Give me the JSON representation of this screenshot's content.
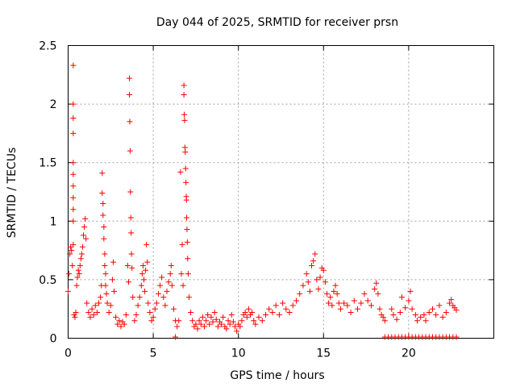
{
  "colors": {
    "series": "#ff0000",
    "grid": "#a0a0a0",
    "axis": "#000000",
    "background": "#ffffff"
  },
  "chart_data": {
    "type": "scatter",
    "title": "Day 044 of 2025, SRMTID for receiver prsn",
    "xlabel": "GPS time / hours",
    "ylabel": "SRMTID / TECUs",
    "xlim": [
      0,
      25
    ],
    "ylim": [
      0,
      2.5
    ],
    "xticks": [
      0,
      5,
      10,
      15,
      20
    ],
    "yticks": [
      0,
      0.5,
      1,
      1.5,
      2,
      2.5
    ],
    "xtick_labels": [
      "0",
      "5",
      "10",
      "15",
      "20"
    ],
    "ytick_labels": [
      "0",
      "0.5",
      "1",
      "1.5",
      "2",
      "2.5"
    ],
    "grid": true,
    "marker": "plus",
    "series": [
      {
        "name": "SRMTID",
        "points": [
          [
            0.0,
            0.4
          ],
          [
            0.05,
            0.55
          ],
          [
            0.1,
            0.72
          ],
          [
            0.15,
            0.78
          ],
          [
            0.2,
            0.75
          ],
          [
            0.25,
            0.62
          ],
          [
            0.3,
            2.33
          ],
          [
            0.3,
            2.0
          ],
          [
            0.3,
            1.88
          ],
          [
            0.3,
            1.75
          ],
          [
            0.3,
            1.5
          ],
          [
            0.3,
            1.4
          ],
          [
            0.3,
            1.3
          ],
          [
            0.3,
            1.2
          ],
          [
            0.3,
            1.1
          ],
          [
            0.3,
            1.0
          ],
          [
            0.3,
            0.8
          ],
          [
            0.35,
            0.2
          ],
          [
            0.4,
            0.18
          ],
          [
            0.45,
            0.22
          ],
          [
            0.5,
            0.45
          ],
          [
            0.55,
            0.52
          ],
          [
            0.6,
            0.58
          ],
          [
            0.65,
            0.55
          ],
          [
            0.7,
            0.62
          ],
          [
            0.75,
            0.68
          ],
          [
            0.8,
            0.72
          ],
          [
            0.85,
            0.78
          ],
          [
            0.9,
            0.88
          ],
          [
            0.95,
            0.95
          ],
          [
            1.0,
            1.02
          ],
          [
            1.05,
            0.85
          ],
          [
            1.1,
            0.3
          ],
          [
            1.2,
            0.22
          ],
          [
            1.3,
            0.18
          ],
          [
            1.4,
            0.25
          ],
          [
            1.5,
            0.2
          ],
          [
            1.6,
            0.28
          ],
          [
            1.7,
            0.22
          ],
          [
            1.8,
            0.3
          ],
          [
            1.9,
            0.35
          ],
          [
            1.95,
            0.45
          ],
          [
            2.0,
            1.41
          ],
          [
            2.0,
            1.24
          ],
          [
            2.05,
            1.15
          ],
          [
            2.05,
            1.05
          ],
          [
            2.1,
            0.95
          ],
          [
            2.1,
            0.85
          ],
          [
            2.15,
            0.72
          ],
          [
            2.15,
            0.62
          ],
          [
            2.2,
            0.55
          ],
          [
            2.2,
            0.45
          ],
          [
            2.25,
            0.38
          ],
          [
            2.3,
            0.3
          ],
          [
            2.4,
            0.22
          ],
          [
            2.5,
            0.28
          ],
          [
            2.6,
            0.5
          ],
          [
            2.65,
            0.65
          ],
          [
            2.7,
            0.4
          ],
          [
            2.8,
            0.18
          ],
          [
            2.9,
            0.12
          ],
          [
            3.0,
            0.15
          ],
          [
            3.1,
            0.1
          ],
          [
            3.2,
            0.14
          ],
          [
            3.3,
            0.12
          ],
          [
            3.4,
            0.2
          ],
          [
            3.5,
            0.62
          ],
          [
            3.55,
            0.48
          ],
          [
            3.6,
            2.22
          ],
          [
            3.6,
            2.08
          ],
          [
            3.62,
            1.85
          ],
          [
            3.64,
            1.6
          ],
          [
            3.66,
            1.25
          ],
          [
            3.68,
            1.03
          ],
          [
            3.7,
            0.9
          ],
          [
            3.72,
            0.72
          ],
          [
            3.75,
            0.6
          ],
          [
            3.8,
            0.35
          ],
          [
            3.9,
            0.15
          ],
          [
            4.0,
            0.2
          ],
          [
            4.1,
            0.28
          ],
          [
            4.2,
            0.35
          ],
          [
            4.3,
            0.45
          ],
          [
            4.35,
            0.55
          ],
          [
            4.4,
            0.62
          ],
          [
            4.45,
            0.5
          ],
          [
            4.5,
            0.4
          ],
          [
            4.55,
            0.58
          ],
          [
            4.6,
            0.8
          ],
          [
            4.65,
            0.65
          ],
          [
            4.7,
            0.3
          ],
          [
            4.8,
            0.22
          ],
          [
            4.9,
            0.15
          ],
          [
            5.0,
            0.18
          ],
          [
            5.1,
            0.25
          ],
          [
            5.2,
            0.3
          ],
          [
            5.3,
            0.38
          ],
          [
            5.4,
            0.45
          ],
          [
            5.5,
            0.52
          ],
          [
            5.6,
            0.35
          ],
          [
            5.7,
            0.28
          ],
          [
            5.8,
            0.4
          ],
          [
            5.9,
            0.48
          ],
          [
            6.0,
            0.55
          ],
          [
            6.05,
            0.62
          ],
          [
            6.1,
            0.45
          ],
          [
            6.2,
            0.25
          ],
          [
            6.3,
            0.15
          ],
          [
            6.3,
            0.01
          ],
          [
            6.4,
            0.1
          ],
          [
            6.5,
            0.15
          ],
          [
            6.6,
            1.42
          ],
          [
            6.65,
            0.55
          ],
          [
            6.7,
            0.8
          ],
          [
            6.75,
            0.45
          ],
          [
            6.8,
            2.16
          ],
          [
            6.8,
            2.08
          ],
          [
            6.82,
            1.91
          ],
          [
            6.84,
            1.86
          ],
          [
            6.86,
            1.63
          ],
          [
            6.88,
            1.59
          ],
          [
            6.9,
            1.45
          ],
          [
            6.92,
            1.33
          ],
          [
            6.94,
            1.21
          ],
          [
            6.95,
            1.18
          ],
          [
            6.96,
            1.03
          ],
          [
            6.98,
            0.93
          ],
          [
            7.0,
            0.82
          ],
          [
            7.02,
            0.68
          ],
          [
            7.05,
            0.55
          ],
          [
            7.1,
            0.35
          ],
          [
            7.2,
            0.22
          ],
          [
            7.3,
            0.15
          ],
          [
            7.4,
            0.1
          ],
          [
            7.5,
            0.12
          ],
          [
            7.6,
            0.08
          ],
          [
            7.7,
            0.15
          ],
          [
            7.8,
            0.12
          ],
          [
            7.9,
            0.18
          ],
          [
            8.0,
            0.1
          ],
          [
            8.1,
            0.15
          ],
          [
            8.2,
            0.2
          ],
          [
            8.3,
            0.12
          ],
          [
            8.4,
            0.18
          ],
          [
            8.5,
            0.14
          ],
          [
            8.6,
            0.22
          ],
          [
            8.7,
            0.16
          ],
          [
            8.8,
            0.1
          ],
          [
            8.9,
            0.14
          ],
          [
            9.0,
            0.12
          ],
          [
            9.1,
            0.18
          ],
          [
            9.2,
            0.1
          ],
          [
            9.3,
            0.08
          ],
          [
            9.4,
            0.15
          ],
          [
            9.5,
            0.12
          ],
          [
            9.6,
            0.2
          ],
          [
            9.7,
            0.14
          ],
          [
            9.8,
            0.1
          ],
          [
            9.9,
            0.06
          ],
          [
            10.0,
            0.12
          ],
          [
            10.1,
            0.1
          ],
          [
            10.2,
            0.15
          ],
          [
            10.3,
            0.2
          ],
          [
            10.4,
            0.22
          ],
          [
            10.5,
            0.18
          ],
          [
            10.6,
            0.25
          ],
          [
            10.7,
            0.2
          ],
          [
            10.8,
            0.22
          ],
          [
            10.9,
            0.15
          ],
          [
            11.0,
            0.12
          ],
          [
            11.2,
            0.18
          ],
          [
            11.4,
            0.15
          ],
          [
            11.6,
            0.2
          ],
          [
            11.8,
            0.25
          ],
          [
            12.0,
            0.22
          ],
          [
            12.2,
            0.28
          ],
          [
            12.4,
            0.2
          ],
          [
            12.6,
            0.3
          ],
          [
            12.8,
            0.25
          ],
          [
            13.0,
            0.22
          ],
          [
            13.2,
            0.28
          ],
          [
            13.4,
            0.32
          ],
          [
            13.6,
            0.38
          ],
          [
            13.8,
            0.45
          ],
          [
            14.0,
            0.55
          ],
          [
            14.1,
            0.48
          ],
          [
            14.2,
            0.4
          ],
          [
            14.3,
            0.62
          ],
          [
            14.4,
            0.66
          ],
          [
            14.5,
            0.72
          ],
          [
            14.6,
            0.5
          ],
          [
            14.7,
            0.42
          ],
          [
            14.8,
            0.52
          ],
          [
            14.9,
            0.6
          ],
          [
            15.0,
            0.58
          ],
          [
            15.1,
            0.48
          ],
          [
            15.2,
            0.38
          ],
          [
            15.3,
            0.3
          ],
          [
            15.4,
            0.35
          ],
          [
            15.5,
            0.28
          ],
          [
            15.6,
            0.4
          ],
          [
            15.7,
            0.45
          ],
          [
            15.8,
            0.38
          ],
          [
            15.9,
            0.3
          ],
          [
            16.0,
            0.25
          ],
          [
            16.2,
            0.3
          ],
          [
            16.4,
            0.28
          ],
          [
            16.6,
            0.22
          ],
          [
            16.8,
            0.32
          ],
          [
            17.0,
            0.25
          ],
          [
            17.2,
            0.3
          ],
          [
            17.4,
            0.38
          ],
          [
            17.6,
            0.32
          ],
          [
            17.8,
            0.28
          ],
          [
            18.0,
            0.42
          ],
          [
            18.1,
            0.47
          ],
          [
            18.2,
            0.38
          ],
          [
            18.3,
            0.25
          ],
          [
            18.4,
            0.2
          ],
          [
            18.5,
            0.18
          ],
          [
            18.6,
            0.15
          ],
          [
            18.6,
            0.01
          ],
          [
            18.8,
            0.01
          ],
          [
            19.0,
            0.01
          ],
          [
            19.2,
            0.01
          ],
          [
            19.4,
            0.01
          ],
          [
            19.6,
            0.01
          ],
          [
            19.8,
            0.01
          ],
          [
            20.0,
            0.01
          ],
          [
            20.2,
            0.01
          ],
          [
            20.4,
            0.01
          ],
          [
            20.6,
            0.01
          ],
          [
            20.8,
            0.01
          ],
          [
            21.0,
            0.01
          ],
          [
            21.2,
            0.01
          ],
          [
            21.4,
            0.01
          ],
          [
            21.6,
            0.01
          ],
          [
            21.8,
            0.01
          ],
          [
            22.0,
            0.01
          ],
          [
            22.2,
            0.01
          ],
          [
            22.4,
            0.01
          ],
          [
            22.6,
            0.01
          ],
          [
            22.8,
            0.01
          ],
          [
            19.0,
            0.25
          ],
          [
            19.1,
            0.2
          ],
          [
            19.3,
            0.16
          ],
          [
            19.5,
            0.22
          ],
          [
            19.6,
            0.35
          ],
          [
            19.8,
            0.26
          ],
          [
            20.0,
            0.32
          ],
          [
            20.1,
            0.4
          ],
          [
            20.2,
            0.25
          ],
          [
            20.4,
            0.2
          ],
          [
            20.5,
            0.15
          ],
          [
            20.7,
            0.18
          ],
          [
            20.9,
            0.2
          ],
          [
            21.0,
            0.15
          ],
          [
            21.2,
            0.22
          ],
          [
            21.4,
            0.25
          ],
          [
            21.6,
            0.2
          ],
          [
            21.8,
            0.28
          ],
          [
            22.0,
            0.18
          ],
          [
            22.2,
            0.22
          ],
          [
            22.4,
            0.3
          ],
          [
            22.5,
            0.33
          ],
          [
            22.6,
            0.28
          ],
          [
            22.7,
            0.26
          ],
          [
            22.8,
            0.24
          ]
        ]
      }
    ]
  }
}
